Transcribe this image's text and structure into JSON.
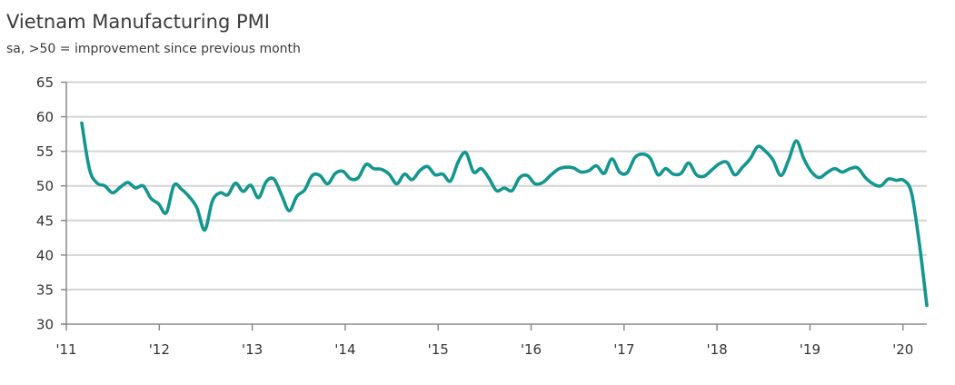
{
  "chart_data": {
    "type": "line",
    "title": "Vietnam Manufacturing PMI",
    "subtitle": "sa, >50 = improvement since previous month",
    "xlabel": "",
    "ylabel": "",
    "ylim": [
      30,
      65
    ],
    "yticks": [
      65,
      60,
      55,
      50,
      45,
      40,
      35,
      30
    ],
    "xticks": [
      "'11",
      "'12",
      "'13",
      "'14",
      "'15",
      "'16",
      "'17",
      "'18",
      "'19",
      "'20"
    ],
    "grid": true,
    "legend": "none",
    "start": "2011-03",
    "frequency": "monthly",
    "series": [
      {
        "name": "Vietnam Manufacturing PMI",
        "color": "#13968f",
        "values": [
          59.1,
          52.4,
          50.4,
          50.0,
          49.0,
          49.8,
          50.5,
          49.7,
          50.0,
          48.2,
          47.4,
          46.1,
          50.1,
          49.5,
          48.4,
          46.8,
          43.6,
          47.8,
          49.0,
          48.7,
          50.4,
          49.2,
          50.1,
          48.3,
          50.6,
          51.0,
          48.7,
          46.4,
          48.5,
          49.4,
          51.5,
          51.5,
          50.3,
          51.8,
          52.1,
          51.0,
          51.2,
          53.1,
          52.5,
          52.4,
          51.7,
          50.3,
          51.7,
          50.9,
          52.2,
          52.8,
          51.6,
          51.7,
          50.7,
          53.5,
          54.8,
          52.0,
          52.5,
          51.1,
          49.3,
          49.7,
          49.3,
          51.2,
          51.5,
          50.3,
          50.5,
          51.5,
          52.4,
          52.7,
          52.6,
          52.0,
          52.2,
          52.9,
          51.8,
          53.9,
          52.0,
          51.9,
          54.1,
          54.6,
          54.0,
          51.6,
          52.5,
          51.7,
          51.8,
          53.3,
          51.6,
          51.4,
          52.3,
          53.2,
          53.4,
          51.6,
          52.7,
          53.9,
          55.7,
          55.0,
          53.7,
          51.5,
          53.7,
          56.5,
          53.9,
          52.0,
          51.2,
          51.9,
          52.5,
          52.0,
          52.5,
          52.6,
          51.2,
          50.3,
          50.0,
          51.0,
          50.8,
          50.8,
          49.0,
          41.9,
          32.7
        ]
      }
    ]
  }
}
